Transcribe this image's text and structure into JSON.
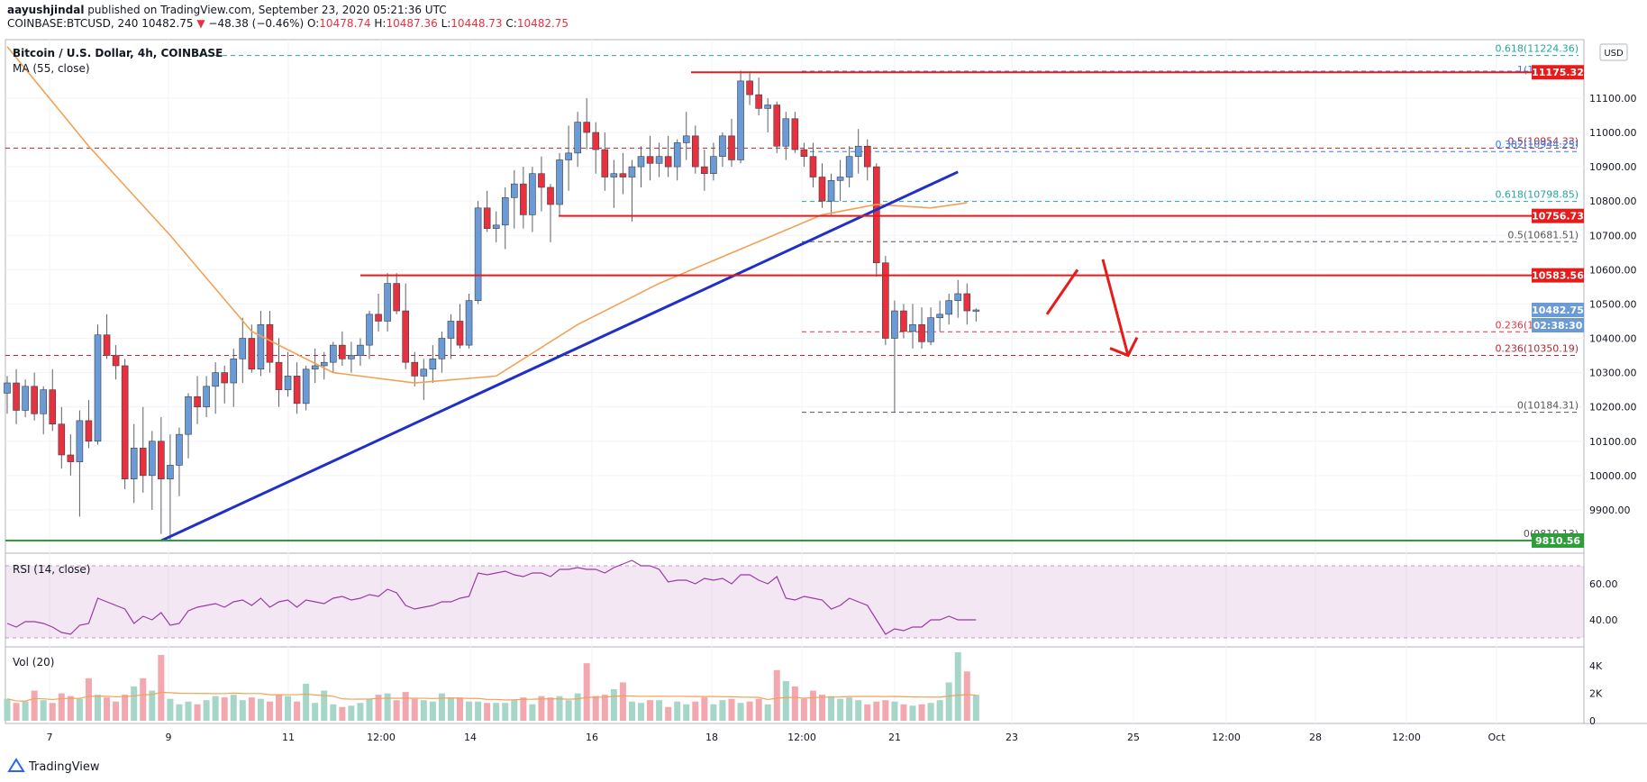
{
  "header": {
    "publisher": "aayushjindal",
    "published_text": "published on TradingView.com, September 23, 2020 05:21:36 UTC",
    "symbol": "COINBASE:BTCUSD, 240",
    "last": "10482.75",
    "change": "−48.38 (−0.46%)",
    "o_label": "O:",
    "o": "10478.74",
    "h_label": "H:",
    "h": "10487.36",
    "l_label": "L:",
    "l": "10448.73",
    "c_label": "C:",
    "c": "10482.75"
  },
  "legend": {
    "title": "Bitcoin / U.S. Dollar, 4h, COINBASE",
    "ma": "MA (55, close)",
    "rsi": "RSI (14, close)",
    "vol": "Vol (20)",
    "currency": "USD"
  },
  "footer": {
    "brand": "TradingView"
  },
  "colors": {
    "up": "#6b9bd6",
    "down": "#e8313f",
    "trend": "#1f2fc7",
    "ma": "#f2a154",
    "support": "#2e9e3a",
    "resistance": "#e81b1b",
    "rsi": "#9b3aa6"
  },
  "chart_data": [
    {
      "type": "candlestick",
      "title": "Bitcoin / U.S. Dollar, 4h, COINBASE",
      "ylim": [
        9800,
        11260
      ],
      "y_ticks": [
        9900,
        10000,
        10100,
        10200,
        10300,
        10400,
        10500,
        10600,
        10700,
        10800,
        10900,
        11000,
        11100
      ],
      "x_ticks": [
        "7",
        "9",
        "11",
        "12:00",
        "14",
        "16",
        "18",
        "12:00",
        "21",
        "23",
        "25",
        "12:00",
        "28",
        "12:00",
        "Oct"
      ],
      "price_tags": [
        "11175.32",
        "10756.73",
        "10583.56",
        "10482.75",
        "02:38:30",
        "9810.56"
      ],
      "fib_labels": [
        "0.618(11224.36)",
        "1(11178.71)",
        "0.5(10954.33)",
        "0.382(10944.25)",
        "0.618(10798.85)",
        "0.5(10681.51)",
        "0.236(10418.99)",
        "0.236(10350.19)",
        "0(10184.31)",
        "0(9810.13)"
      ],
      "horizontal_levels": [
        11175.32,
        10756.73,
        10583.56,
        9810.56
      ],
      "ohlc": [
        [
          10240,
          10290,
          10180,
          10270
        ],
        [
          10270,
          10310,
          10150,
          10190
        ],
        [
          10190,
          10280,
          10170,
          10260
        ],
        [
          10260,
          10300,
          10160,
          10180
        ],
        [
          10180,
          10260,
          10120,
          10250
        ],
        [
          10250,
          10310,
          10130,
          10150
        ],
        [
          10150,
          10200,
          10020,
          10060
        ],
        [
          10060,
          10120,
          10000,
          10040
        ],
        [
          10040,
          10190,
          9880,
          10160
        ],
        [
          10160,
          10220,
          10080,
          10100
        ],
        [
          10100,
          10440,
          10090,
          10410
        ],
        [
          10410,
          10470,
          10340,
          10350
        ],
        [
          10350,
          10380,
          10280,
          10320
        ],
        [
          10320,
          10340,
          9960,
          9990
        ],
        [
          9990,
          10150,
          9920,
          10080
        ],
        [
          10080,
          10200,
          9950,
          10000
        ],
        [
          10000,
          10130,
          9900,
          10100
        ],
        [
          10100,
          10170,
          9830,
          9990
        ],
        [
          9990,
          10120,
          9810,
          10030
        ],
        [
          10030,
          10140,
          9940,
          10120
        ],
        [
          10120,
          10240,
          10050,
          10230
        ],
        [
          10230,
          10290,
          10150,
          10200
        ],
        [
          10200,
          10290,
          10170,
          10260
        ],
        [
          10260,
          10330,
          10180,
          10300
        ],
        [
          10300,
          10320,
          10210,
          10270
        ],
        [
          10270,
          10370,
          10200,
          10340
        ],
        [
          10340,
          10460,
          10270,
          10400
        ],
        [
          10400,
          10440,
          10300,
          10310
        ],
        [
          10310,
          10480,
          10290,
          10440
        ],
        [
          10440,
          10480,
          10300,
          10330
        ],
        [
          10330,
          10400,
          10200,
          10250
        ],
        [
          10250,
          10360,
          10230,
          10290
        ],
        [
          10290,
          10330,
          10180,
          10210
        ],
        [
          10210,
          10320,
          10190,
          10310
        ],
        [
          10310,
          10370,
          10270,
          10320
        ],
        [
          10320,
          10360,
          10280,
          10330
        ],
        [
          10330,
          10390,
          10300,
          10380
        ],
        [
          10380,
          10420,
          10320,
          10340
        ],
        [
          10340,
          10390,
          10300,
          10350
        ],
        [
          10350,
          10400,
          10320,
          10380
        ],
        [
          10380,
          10480,
          10340,
          10470
        ],
        [
          10470,
          10530,
          10420,
          10450
        ],
        [
          10450,
          10590,
          10420,
          10560
        ],
        [
          10560,
          10590,
          10470,
          10480
        ],
        [
          10480,
          10560,
          10310,
          10330
        ],
        [
          10330,
          10360,
          10260,
          10290
        ],
        [
          10290,
          10340,
          10220,
          10310
        ],
        [
          10310,
          10380,
          10270,
          10340
        ],
        [
          10340,
          10420,
          10300,
          10400
        ],
        [
          10400,
          10470,
          10340,
          10450
        ],
        [
          10450,
          10500,
          10370,
          10380
        ],
        [
          10380,
          10530,
          10370,
          10510
        ],
        [
          10510,
          10800,
          10500,
          10780
        ],
        [
          10780,
          10830,
          10710,
          10720
        ],
        [
          10720,
          10770,
          10680,
          10730
        ],
        [
          10730,
          10840,
          10660,
          10810
        ],
        [
          10810,
          10890,
          10720,
          10850
        ],
        [
          10850,
          10900,
          10720,
          10760
        ],
        [
          10760,
          10900,
          10710,
          10880
        ],
        [
          10880,
          10930,
          10770,
          10840
        ],
        [
          10840,
          10850,
          10680,
          10790
        ],
        [
          10790,
          10940,
          10760,
          10920
        ],
        [
          10920,
          11020,
          10830,
          10940
        ],
        [
          10940,
          11060,
          10900,
          11030
        ],
        [
          11030,
          11100,
          10950,
          11000
        ],
        [
          11000,
          11030,
          10880,
          10950
        ],
        [
          10950,
          11000,
          10830,
          10870
        ],
        [
          10870,
          10920,
          10780,
          10880
        ],
        [
          10880,
          10940,
          10820,
          10870
        ],
        [
          10870,
          10920,
          10740,
          10900
        ],
        [
          10900,
          10960,
          10840,
          10930
        ],
        [
          10930,
          10990,
          10860,
          10910
        ],
        [
          10910,
          10970,
          10870,
          10930
        ],
        [
          10930,
          10990,
          10870,
          10900
        ],
        [
          10900,
          10980,
          10860,
          10970
        ],
        [
          10970,
          11060,
          10920,
          10990
        ],
        [
          10990,
          11020,
          10880,
          10900
        ],
        [
          10900,
          10950,
          10830,
          10880
        ],
        [
          10880,
          10970,
          10860,
          10930
        ],
        [
          10930,
          11000,
          10900,
          10990
        ],
        [
          10990,
          11040,
          10900,
          10920
        ],
        [
          10920,
          11180,
          10910,
          11150
        ],
        [
          11150,
          11178,
          11080,
          11110
        ],
        [
          11110,
          11160,
          11050,
          11070
        ],
        [
          11070,
          11100,
          11000,
          11080
        ],
        [
          11080,
          11090,
          10940,
          10960
        ],
        [
          10960,
          11060,
          10920,
          11040
        ],
        [
          11040,
          11060,
          10940,
          10950
        ],
        [
          10950,
          10970,
          10900,
          10930
        ],
        [
          10930,
          10970,
          10840,
          10870
        ],
        [
          10870,
          10910,
          10780,
          10800
        ],
        [
          10800,
          10880,
          10760,
          10860
        ],
        [
          10860,
          10920,
          10800,
          10870
        ],
        [
          10870,
          10960,
          10840,
          10930
        ],
        [
          10930,
          11010,
          10880,
          10960
        ],
        [
          10960,
          10980,
          10860,
          10900
        ],
        [
          10900,
          10910,
          10580,
          10620
        ],
        [
          10620,
          10640,
          10380,
          10400
        ],
        [
          10400,
          10510,
          10184,
          10480
        ],
        [
          10480,
          10500,
          10400,
          10420
        ],
        [
          10420,
          10500,
          10370,
          10440
        ],
        [
          10440,
          10490,
          10370,
          10390
        ],
        [
          10390,
          10490,
          10380,
          10460
        ],
        [
          10460,
          10510,
          10420,
          10470
        ],
        [
          10470,
          10530,
          10440,
          10510
        ],
        [
          10510,
          10570,
          10460,
          10530
        ],
        [
          10530,
          10560,
          10440,
          10480
        ],
        [
          10478.74,
          10487.36,
          10448.73,
          10482.75
        ]
      ],
      "ma55": [
        [
          0,
          11250
        ],
        [
          9,
          10960
        ],
        [
          18,
          10700
        ],
        [
          27,
          10420
        ],
        [
          36,
          10300
        ],
        [
          45,
          10270
        ],
        [
          54,
          10290
        ],
        [
          63,
          10440
        ],
        [
          72,
          10560
        ],
        [
          81,
          10660
        ],
        [
          90,
          10760
        ],
        [
          96,
          10790
        ],
        [
          102,
          10780
        ],
        [
          106,
          10795
        ]
      ],
      "trendline": [
        [
          17,
          9810
        ],
        [
          105,
          10885
        ]
      ],
      "forecast": {
        "up_from": 10470,
        "up_to": 10600,
        "down_to": 10350
      }
    },
    {
      "type": "line",
      "title": "RSI (14, close)",
      "ylim": [
        28,
        75
      ],
      "y_ticks": [
        40,
        60
      ],
      "values": [
        38,
        36,
        39,
        39,
        38,
        36,
        33,
        32,
        37,
        38,
        52,
        50,
        48,
        46,
        38,
        42,
        40,
        44,
        37,
        38,
        45,
        47,
        48,
        49,
        47,
        50,
        51,
        48,
        52,
        47,
        50,
        51,
        47,
        51,
        50,
        49,
        52,
        53,
        51,
        52,
        54,
        53,
        57,
        55,
        48,
        46,
        47,
        48,
        50,
        50,
        52,
        53,
        66,
        65,
        66,
        67,
        65,
        64,
        66,
        66,
        64,
        68,
        68,
        69,
        68,
        68,
        66,
        69,
        71,
        73,
        70,
        70,
        68,
        61,
        62,
        62,
        60,
        63,
        62,
        63,
        60,
        65,
        65,
        62,
        60,
        64,
        52,
        51,
        53,
        52,
        51,
        46,
        48,
        52,
        50,
        48,
        40,
        32,
        35,
        34,
        36,
        36,
        40,
        40,
        42,
        40,
        40,
        40
      ]
    },
    {
      "type": "bar",
      "title": "Vol (20)",
      "ylim": [
        0,
        5000
      ],
      "y_ticks": [
        0,
        2000,
        4000
      ],
      "tick_labels": [
        "0",
        "2K",
        "4K"
      ],
      "values": [
        1600,
        1300,
        1400,
        2200,
        1500,
        1300,
        2000,
        1800,
        1600,
        3100,
        1900,
        1700,
        1400,
        1900,
        2500,
        3100,
        2200,
        4800,
        1600,
        1200,
        1400,
        1200,
        1500,
        1800,
        1700,
        1900,
        1500,
        1700,
        1600,
        1400,
        1900,
        1800,
        1400,
        2700,
        1300,
        2200,
        1200,
        1000,
        1100,
        1300,
        1600,
        1900,
        2000,
        1500,
        2100,
        1600,
        1500,
        1400,
        2000,
        1700,
        1700,
        1400,
        1400,
        1300,
        1300,
        1300,
        1500,
        1700,
        1200,
        1800,
        1700,
        1800,
        1500,
        2000,
        4200,
        1800,
        1900,
        2300,
        2800,
        1400,
        1300,
        1500,
        1500,
        1000,
        1400,
        1200,
        1400,
        1700,
        1200,
        1500,
        1600,
        1300,
        1400,
        1600,
        1200,
        3700,
        2900,
        2500,
        1600,
        2200,
        1900,
        1800,
        1600,
        1700,
        1500,
        1200,
        1400,
        1500,
        1400,
        1200,
        1100,
        1200,
        1300,
        1500,
        2800,
        5000,
        3600,
        1900
      ]
    }
  ]
}
